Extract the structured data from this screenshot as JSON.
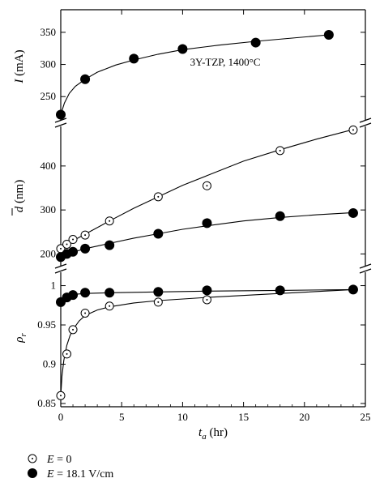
{
  "chart_data": {
    "type": "scatter",
    "x_axis": {
      "label_main": "t",
      "label_sub": "a",
      "label_unit": " (hr)",
      "range": [
        0,
        25
      ],
      "ticks": [
        0,
        5,
        10,
        15,
        20,
        25
      ]
    },
    "panels": [
      {
        "id": "current",
        "ylabel_main": "I",
        "ylabel_unit": " (mA)",
        "ylim": [
          215,
          370
        ],
        "yticks": [
          250,
          300,
          350
        ],
        "annotation": "3Y-TZP, 1400°C",
        "series": [
          {
            "marker": "filled",
            "x": [
              0,
              2,
              6,
              10,
              16,
              22
            ],
            "y": [
              222,
              277,
              309,
              324,
              334,
              346
            ]
          }
        ],
        "fits": [
          {
            "x": [
              0,
              0.3,
              0.7,
              1.2,
              2,
              3,
              4.5,
              6,
              8,
              10,
              13,
              16,
              19,
              22
            ],
            "y": [
              222,
              240,
              255,
              266,
              277,
              288,
              299,
              307,
              316,
              323,
              330,
              336,
              341,
              346
            ]
          }
        ]
      },
      {
        "id": "grain-size",
        "ylabel_main": "d",
        "ylabel_unit": " (nm)",
        "ylim": [
          175,
          490
        ],
        "yticks": [
          200,
          300,
          400
        ],
        "series": [
          {
            "marker": "open",
            "x": [
              0,
              0.5,
              1,
              2,
              4,
              8,
              12,
              18,
              24
            ],
            "y": [
              212,
              222,
              233,
              243,
              275,
              330,
              355,
              435,
              482
            ]
          },
          {
            "marker": "filled",
            "x": [
              0,
              0.5,
              1,
              2,
              4,
              8,
              12,
              18,
              24
            ],
            "y": [
              193,
              200,
              205,
              212,
              220,
              246,
              270,
              286,
              293
            ]
          }
        ],
        "fits": [
          {
            "x": [
              0,
              1,
              2,
              4,
              6,
              8,
              10,
              12,
              15,
              18,
              21,
              24
            ],
            "y": [
              212,
              230,
              245,
              275,
              304,
              330,
              356,
              378,
              411,
              437,
              461,
              483
            ]
          },
          {
            "x": [
              0,
              0.5,
              1,
              2,
              3,
              4,
              6,
              8,
              10,
              12,
              15,
              18,
              21,
              24
            ],
            "y": [
              192,
              198,
              204,
              212,
              218,
              224,
              236,
              246,
              256,
              264,
              275,
              283,
              289,
              294
            ]
          }
        ]
      },
      {
        "id": "density",
        "ylabel_main": "ρ",
        "ylabel_sub": "r",
        "ylim": [
          0.85,
          1.015
        ],
        "yticks": [
          0.85,
          0.9,
          0.95,
          1
        ],
        "series": [
          {
            "marker": "open",
            "x": [
              0,
              0.5,
              1,
              2,
              4,
              8,
              12,
              18,
              24
            ],
            "y": [
              0.86,
              0.913,
              0.944,
              0.965,
              0.974,
              0.979,
              0.982,
              0.994,
              0.995
            ]
          },
          {
            "marker": "filled",
            "x": [
              0,
              0.5,
              1,
              2,
              4,
              8,
              12,
              18,
              24
            ],
            "y": [
              0.979,
              0.985,
              0.988,
              0.991,
              0.991,
              0.992,
              0.994,
              0.994,
              0.995
            ]
          }
        ],
        "fits": [
          {
            "x": [
              0,
              0.1,
              0.25,
              0.5,
              0.75,
              1,
              1.5,
              2,
              3,
              4,
              6,
              8,
              12,
              18,
              24
            ],
            "y": [
              0.86,
              0.885,
              0.905,
              0.924,
              0.936,
              0.944,
              0.955,
              0.962,
              0.969,
              0.973,
              0.978,
              0.981,
              0.985,
              0.99,
              0.995
            ]
          },
          {
            "x": [
              0,
              0.3,
              0.7,
              1.2,
              2,
              4,
              8,
              12,
              18,
              24
            ],
            "y": [
              0.977,
              0.983,
              0.987,
              0.989,
              0.99,
              0.991,
              0.992,
              0.993,
              0.994,
              0.995
            ]
          }
        ]
      }
    ],
    "legend": [
      {
        "marker": "open",
        "label_var": "E",
        "label_rest": " = 0"
      },
      {
        "marker": "filled",
        "label_var": "E",
        "label_rest": " = 18.1 V/cm"
      }
    ],
    "legend_position": "bottom-left"
  }
}
